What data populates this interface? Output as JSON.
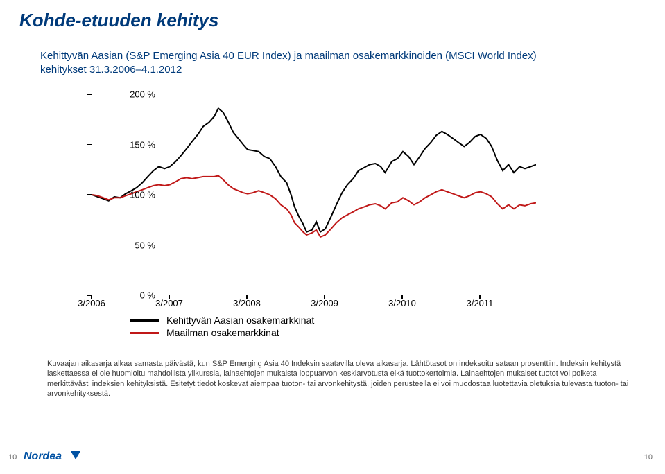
{
  "title": "Kohde-etuuden kehitys",
  "subtitle": "Kehittyvän Aasian (S&P Emerging Asia 40 EUR Index) ja maailman osakemarkkinoiden (MSCI World Index) kehitykset 31.3.2006–4.1.2012",
  "chart": {
    "type": "line",
    "ylim": [
      0,
      200
    ],
    "ytick_step": 50,
    "yticks": [
      0,
      50,
      100,
      150,
      200
    ],
    "ytick_labels": [
      "0 %",
      "50 %",
      "100 %",
      "150 %",
      "200 %"
    ],
    "xticks": [
      "3/2006",
      "3/2007",
      "3/2008",
      "3/2009",
      "3/2010",
      "3/2011"
    ],
    "xtick_positions": [
      0,
      0.175,
      0.35,
      0.525,
      0.7,
      0.875
    ],
    "background_color": "#ffffff",
    "axis_color": "#000000",
    "tick_fontsize": 13,
    "line_width": 2,
    "series": [
      {
        "name": "Kehittyvän Aasian osakemarkkinat",
        "color": "#000000",
        "data": [
          [
            0.0,
            100
          ],
          [
            0.012,
            98
          ],
          [
            0.025,
            96
          ],
          [
            0.037,
            94
          ],
          [
            0.05,
            98
          ],
          [
            0.063,
            97
          ],
          [
            0.075,
            101
          ],
          [
            0.088,
            104
          ],
          [
            0.1,
            107
          ],
          [
            0.113,
            112
          ],
          [
            0.125,
            118
          ],
          [
            0.138,
            124
          ],
          [
            0.15,
            128
          ],
          [
            0.163,
            126
          ],
          [
            0.175,
            128
          ],
          [
            0.188,
            133
          ],
          [
            0.2,
            139
          ],
          [
            0.213,
            146
          ],
          [
            0.225,
            153
          ],
          [
            0.238,
            160
          ],
          [
            0.25,
            168
          ],
          [
            0.263,
            172
          ],
          [
            0.275,
            178
          ],
          [
            0.284,
            186
          ],
          [
            0.295,
            182
          ],
          [
            0.306,
            173
          ],
          [
            0.318,
            162
          ],
          [
            0.329,
            156
          ],
          [
            0.34,
            150
          ],
          [
            0.35,
            145
          ],
          [
            0.362,
            144
          ],
          [
            0.375,
            143
          ],
          [
            0.388,
            138
          ],
          [
            0.4,
            136
          ],
          [
            0.413,
            128
          ],
          [
            0.425,
            118
          ],
          [
            0.438,
            112
          ],
          [
            0.448,
            100
          ],
          [
            0.456,
            88
          ],
          [
            0.465,
            79
          ],
          [
            0.475,
            71
          ],
          [
            0.483,
            63
          ],
          [
            0.495,
            65
          ],
          [
            0.505,
            73
          ],
          [
            0.514,
            63
          ],
          [
            0.525,
            66
          ],
          [
            0.538,
            78
          ],
          [
            0.55,
            90
          ],
          [
            0.563,
            102
          ],
          [
            0.575,
            110
          ],
          [
            0.588,
            116
          ],
          [
            0.6,
            124
          ],
          [
            0.613,
            127
          ],
          [
            0.625,
            130
          ],
          [
            0.638,
            131
          ],
          [
            0.65,
            128
          ],
          [
            0.66,
            122
          ],
          [
            0.675,
            133
          ],
          [
            0.688,
            136
          ],
          [
            0.7,
            143
          ],
          [
            0.713,
            138
          ],
          [
            0.725,
            130
          ],
          [
            0.738,
            138
          ],
          [
            0.75,
            146
          ],
          [
            0.763,
            152
          ],
          [
            0.775,
            159
          ],
          [
            0.788,
            163
          ],
          [
            0.8,
            160
          ],
          [
            0.813,
            156
          ],
          [
            0.825,
            152
          ],
          [
            0.838,
            148
          ],
          [
            0.85,
            152
          ],
          [
            0.863,
            158
          ],
          [
            0.875,
            160
          ],
          [
            0.888,
            156
          ],
          [
            0.9,
            148
          ],
          [
            0.913,
            134
          ],
          [
            0.925,
            124
          ],
          [
            0.938,
            130
          ],
          [
            0.95,
            122
          ],
          [
            0.963,
            128
          ],
          [
            0.975,
            126
          ],
          [
            0.988,
            128
          ],
          [
            1.0,
            130
          ]
        ]
      },
      {
        "name": "Maailman osakemarkkinat",
        "color": "#c01818",
        "data": [
          [
            0.0,
            100
          ],
          [
            0.012,
            99
          ],
          [
            0.025,
            97
          ],
          [
            0.037,
            95
          ],
          [
            0.05,
            97
          ],
          [
            0.063,
            97
          ],
          [
            0.075,
            99
          ],
          [
            0.088,
            101
          ],
          [
            0.1,
            103
          ],
          [
            0.113,
            105
          ],
          [
            0.125,
            107
          ],
          [
            0.138,
            109
          ],
          [
            0.15,
            110
          ],
          [
            0.163,
            109
          ],
          [
            0.175,
            110
          ],
          [
            0.188,
            113
          ],
          [
            0.2,
            116
          ],
          [
            0.213,
            117
          ],
          [
            0.225,
            116
          ],
          [
            0.238,
            117
          ],
          [
            0.25,
            118
          ],
          [
            0.263,
            118
          ],
          [
            0.275,
            118
          ],
          [
            0.284,
            119
          ],
          [
            0.295,
            115
          ],
          [
            0.306,
            110
          ],
          [
            0.318,
            106
          ],
          [
            0.329,
            104
          ],
          [
            0.34,
            102
          ],
          [
            0.35,
            101
          ],
          [
            0.362,
            102
          ],
          [
            0.375,
            104
          ],
          [
            0.388,
            102
          ],
          [
            0.4,
            100
          ],
          [
            0.413,
            96
          ],
          [
            0.425,
            90
          ],
          [
            0.438,
            86
          ],
          [
            0.448,
            80
          ],
          [
            0.456,
            72
          ],
          [
            0.465,
            68
          ],
          [
            0.475,
            63
          ],
          [
            0.483,
            60
          ],
          [
            0.495,
            62
          ],
          [
            0.505,
            65
          ],
          [
            0.514,
            58
          ],
          [
            0.525,
            60
          ],
          [
            0.538,
            66
          ],
          [
            0.55,
            72
          ],
          [
            0.563,
            77
          ],
          [
            0.575,
            80
          ],
          [
            0.588,
            83
          ],
          [
            0.6,
            86
          ],
          [
            0.613,
            88
          ],
          [
            0.625,
            90
          ],
          [
            0.638,
            91
          ],
          [
            0.65,
            89
          ],
          [
            0.66,
            86
          ],
          [
            0.675,
            92
          ],
          [
            0.688,
            93
          ],
          [
            0.7,
            97
          ],
          [
            0.713,
            94
          ],
          [
            0.725,
            90
          ],
          [
            0.738,
            93
          ],
          [
            0.75,
            97
          ],
          [
            0.763,
            100
          ],
          [
            0.775,
            103
          ],
          [
            0.788,
            105
          ],
          [
            0.8,
            103
          ],
          [
            0.813,
            101
          ],
          [
            0.825,
            99
          ],
          [
            0.838,
            97
          ],
          [
            0.85,
            99
          ],
          [
            0.863,
            102
          ],
          [
            0.875,
            103
          ],
          [
            0.888,
            101
          ],
          [
            0.9,
            98
          ],
          [
            0.913,
            91
          ],
          [
            0.925,
            86
          ],
          [
            0.938,
            90
          ],
          [
            0.95,
            86
          ],
          [
            0.963,
            90
          ],
          [
            0.975,
            89
          ],
          [
            0.988,
            91
          ],
          [
            1.0,
            92
          ]
        ]
      }
    ],
    "legend": {
      "position": "bottom-left-inside",
      "fontsize": 14
    }
  },
  "footnote": "Kuvaajan aikasarja alkaa samasta päivästä, kun S&P Emerging Asia 40 Indeksin saatavilla oleva aikasarja. Lähtötasot on indeksoitu sataan prosenttiin. Indeksin kehitystä laskettaessa ei ole huomioitu mahdollista ylikurssia, lainaehtojen mukaista loppuarvon keskiarvotusta eikä tuottokertoimia. Lainaehtojen mukaiset tuotot voi poiketa merkittävästi indeksien kehityksistä. Esitetyt tiedot koskevat aiempaa tuoton- tai arvonkehitystä, joiden perusteella ei voi muodostaa luotettavia oletuksia tulevasta tuoton- tai arvonkehityksestä.",
  "page_left": "10",
  "page_right": "10",
  "logo": {
    "text": "Nordea",
    "color": "#0051a3",
    "triangle_color": "#0051a3"
  }
}
